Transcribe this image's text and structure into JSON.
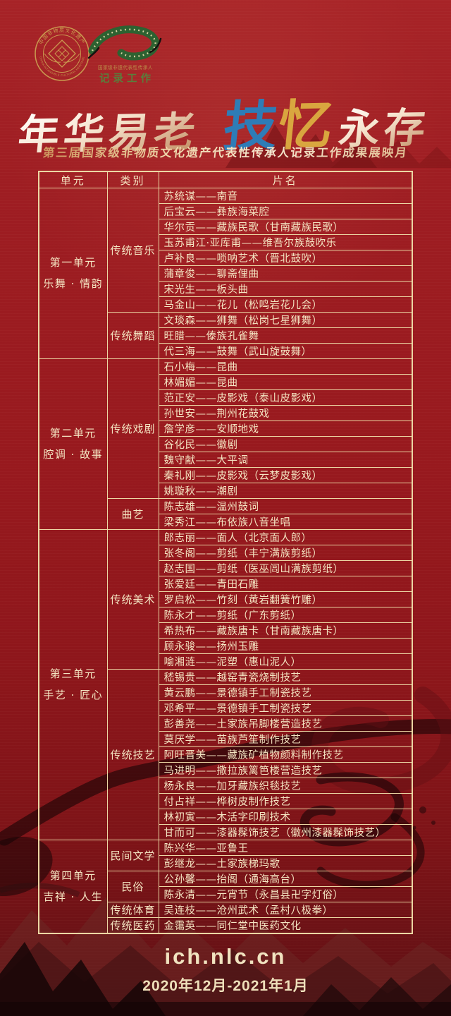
{
  "poster": {
    "logos": {
      "ich_emblem": {
        "top_text": "中国非物质文化遗产",
        "bottom_text": "CHINA INTANGIBLE CULTURAL HERITAGE"
      },
      "recording_project": {
        "line1": "国家级非遗代表性传承人",
        "line2": "记录工作"
      }
    },
    "title": {
      "part1": "年华易老",
      "char_ji": "技",
      "char_yi": "忆",
      "part2": "永存"
    },
    "subtitle": "第三届国家级非物质文化遗产代表性传承人记录工作成果展映月",
    "footer": {
      "url": "ich.nlc.cn",
      "dates": "2020年12月-2021年1月"
    },
    "colors": {
      "background_red": "#9a1a1f",
      "line_gold": "#ecd7a4",
      "text_cream": "#f4e5c2",
      "title_blue": "#2e7cb7",
      "title_gold": "#d9a63f",
      "logo_green": "#597f3c"
    }
  },
  "table": {
    "headers": [
      "单元",
      "类别",
      "片名"
    ],
    "units": [
      {
        "name": "第一单元",
        "theme": "乐舞 · 情韵",
        "categories": [
          {
            "label": "传统音乐",
            "films": [
              "苏统谋——南音",
              "后宝云——彝族海菜腔",
              "华尔贡——藏族民歌（甘南藏族民歌）",
              "玉苏甫江·亚库甫——维吾尔族鼓吹乐",
              "卢补良——唢呐艺术（晋北鼓吹）",
              "蒲章俊——聊斋俚曲",
              "宋光生——板头曲",
              "马金山——花儿（松鸣岩花儿会）"
            ]
          },
          {
            "label": "传统舞蹈",
            "films": [
              "文琰森——狮舞（松岗七星狮舞）",
              "旺腊——傣族孔雀舞",
              "代三海——鼓舞（武山旋鼓舞）"
            ]
          }
        ]
      },
      {
        "name": "第二单元",
        "theme": "腔调 · 故事",
        "categories": [
          {
            "label": "传统戏剧",
            "films": [
              "石小梅——昆曲",
              "林媚媚——昆曲",
              "范正安——皮影戏（泰山皮影戏）",
              "孙世安——荆州花鼓戏",
              "詹学彦——安顺地戏",
              "谷化民——徽剧",
              "魏守献——大平调",
              "秦礼刚——皮影戏（云梦皮影戏）",
              "姚璇秋——潮剧"
            ]
          },
          {
            "label": "曲艺",
            "films": [
              "陈志雄——温州鼓词",
              "梁秀江——布依族八音坐唱"
            ]
          }
        ]
      },
      {
        "name": "第三单元",
        "theme": "手艺 · 匠心",
        "categories": [
          {
            "label": "传统美术",
            "films": [
              "郎志丽——面人（北京面人郎）",
              "张冬阁——剪纸（丰宁满族剪纸）",
              "赵志国——剪纸（医巫闾山满族剪纸）",
              "张爱廷——青田石雕",
              "罗启松——竹刻（黄岩翻簧竹雕）",
              "陈永才——剪纸（广东剪纸）",
              "希热布——藏族唐卡（甘南藏族唐卡）",
              "顾永骏——扬州玉雕",
              "喻湘涟——泥塑（惠山泥人）"
            ]
          },
          {
            "label": "传统技艺",
            "films": [
              "嵇锡贵——越窑青瓷烧制技艺",
              "黄云鹏——景德镇手工制瓷技艺",
              "邓希平——景德镇手工制瓷技艺",
              "彭善尧——土家族吊脚楼营造技艺",
              "莫厌学——苗族芦笙制作技艺",
              "阿旺晋美——藏族矿植物颜料制作技艺",
              "马进明——撒拉族篱笆楼营造技艺",
              "杨永良——加牙藏族织毯技艺",
              "付占祥——桦树皮制作技艺",
              "林初寅——木活字印刷技术",
              "甘而可——漆器髹饰技艺（徽州漆器髹饰技艺）"
            ]
          }
        ]
      },
      {
        "name": "第四单元",
        "theme": "吉祥 · 人生",
        "categories": [
          {
            "label": "民间文学",
            "films": [
              "陈兴华——亚鲁王",
              "彭继龙——土家族梯玛歌"
            ]
          },
          {
            "label": "民俗",
            "films": [
              "公孙馨——抬阁（通海高台）",
              "陈永清——元宵节（永昌县卍字灯俗）"
            ]
          },
          {
            "label": "传统体育",
            "films": [
              "吴连枝——沧州武术（孟村八极拳）"
            ]
          },
          {
            "label": "传统医药",
            "films": [
              "金霭英——同仁堂中医药文化"
            ]
          }
        ]
      }
    ]
  }
}
